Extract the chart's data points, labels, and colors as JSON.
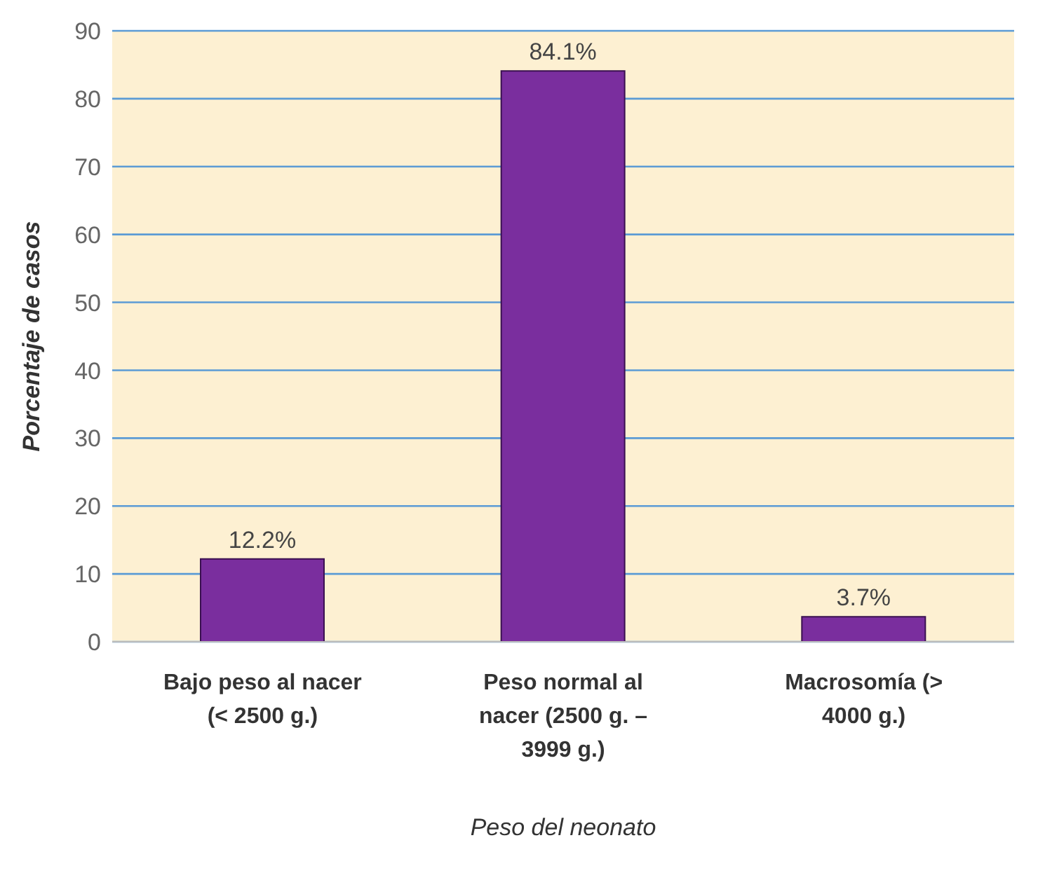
{
  "chart_data": {
    "type": "bar",
    "xlabel": "Peso del neonato",
    "ylabel": "Porcentaje de casos",
    "categories": [
      "Bajo peso al nacer (< 2500 g.)",
      "Peso normal al nacer (2500 g. – 3999 g.)",
      "Macrosomía (> 4000 g.)"
    ],
    "values": [
      12.2,
      84.1,
      3.7
    ],
    "value_labels": [
      "12.2%",
      "84.1%",
      "3.7%"
    ],
    "color": "#7a2e9e",
    "ylim": [
      0,
      90
    ],
    "yticks": [
      0,
      10,
      20,
      30,
      40,
      50,
      60,
      70,
      80,
      90
    ],
    "grid": "y"
  }
}
